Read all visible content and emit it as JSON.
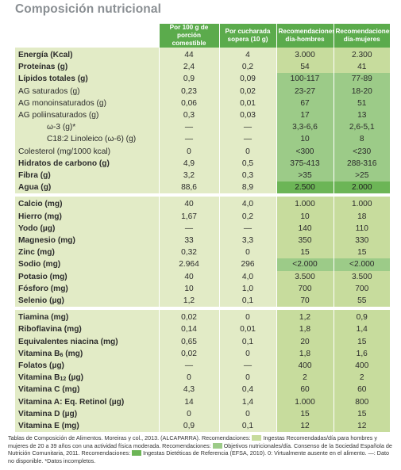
{
  "title": "Composición nutricional",
  "headers": [
    "Por 100 g de porción comestible",
    "Por cucharada sopera (10 g)",
    "Recomendaciones día-hombres",
    "Recomendaciones día-mujeres"
  ],
  "colors": {
    "header": "#5bab4c",
    "light": "#e2ebc6",
    "ingestas": "#c7dc9d",
    "objetivos": "#9ccb88",
    "efsa": "#6cb556"
  },
  "groups": [
    [
      {
        "name": "Energía (Kcal)",
        "bold": true,
        "v": [
          "44",
          "4",
          "3.000",
          "2.300"
        ],
        "c": [
          "",
          "",
          "g1",
          "g1"
        ]
      },
      {
        "name": "Proteínas (g)",
        "bold": true,
        "v": [
          "2,4",
          "0,2",
          "54",
          "41"
        ],
        "c": [
          "",
          "",
          "g1",
          "g1"
        ]
      },
      {
        "name": "Lípidos totales (g)",
        "bold": true,
        "v": [
          "0,9",
          "0,09",
          "100-117",
          "77-89"
        ],
        "c": [
          "",
          "",
          "g2",
          "g2"
        ]
      },
      {
        "name": "AG saturados (g)",
        "bold": false,
        "v": [
          "0,23",
          "0,02",
          "23-27",
          "18-20"
        ],
        "c": [
          "",
          "",
          "g2",
          "g2"
        ]
      },
      {
        "name": "AG monoinsaturados (g)",
        "bold": false,
        "v": [
          "0,06",
          "0,01",
          "67",
          "51"
        ],
        "c": [
          "",
          "",
          "g2",
          "g2"
        ]
      },
      {
        "name": "AG poliinsaturados (g)",
        "bold": false,
        "v": [
          "0,3",
          "0,03",
          "17",
          "13"
        ],
        "c": [
          "",
          "",
          "g2",
          "g2"
        ]
      },
      {
        "name": "ω-3 (g)*",
        "bold": false,
        "indent": true,
        "v": [
          "—",
          "—",
          "3,3-6,6",
          "2,6-5,1"
        ],
        "c": [
          "",
          "",
          "g2",
          "g2"
        ]
      },
      {
        "name": "C18:2 Linoleico (ω-6) (g)",
        "bold": false,
        "indent": true,
        "v": [
          "—",
          "—",
          "10",
          "8"
        ],
        "c": [
          "",
          "",
          "g2",
          "g2"
        ]
      },
      {
        "name": "Colesterol (mg/1000 kcal)",
        "bold": false,
        "v": [
          "0",
          "0",
          "<300",
          "<230"
        ],
        "c": [
          "",
          "",
          "g2",
          "g2"
        ]
      },
      {
        "name": "Hidratos de carbono (g)",
        "bold": true,
        "v": [
          "4,9",
          "0,5",
          "375-413",
          "288-316"
        ],
        "c": [
          "",
          "",
          "g2",
          "g2"
        ]
      },
      {
        "name": "Fibra (g)",
        "bold": true,
        "v": [
          "3,2",
          "0,3",
          ">35",
          ">25"
        ],
        "c": [
          "",
          "",
          "g2",
          "g2"
        ]
      },
      {
        "name": "Agua (g)",
        "bold": true,
        "v": [
          "88,6",
          "8,9",
          "2.500",
          "2.000"
        ],
        "c": [
          "",
          "",
          "g3",
          "g3"
        ]
      }
    ],
    [
      {
        "name": "Calcio (mg)",
        "bold": true,
        "v": [
          "40",
          "4,0",
          "1.000",
          "1.000"
        ],
        "c": [
          "",
          "",
          "g1",
          "g1"
        ]
      },
      {
        "name": "Hierro (mg)",
        "bold": true,
        "v": [
          "1,67",
          "0,2",
          "10",
          "18"
        ],
        "c": [
          "",
          "",
          "g1",
          "g1"
        ]
      },
      {
        "name": "Yodo (µg)",
        "bold": true,
        "v": [
          "—",
          "—",
          "140",
          "110"
        ],
        "c": [
          "",
          "",
          "g1",
          "g1"
        ]
      },
      {
        "name": "Magnesio (mg)",
        "bold": true,
        "v": [
          "33",
          "3,3",
          "350",
          "330"
        ],
        "c": [
          "",
          "",
          "g1",
          "g1"
        ]
      },
      {
        "name": "Zinc (mg)",
        "bold": true,
        "v": [
          "0,32",
          "0",
          "15",
          "15"
        ],
        "c": [
          "",
          "",
          "g1",
          "g1"
        ]
      },
      {
        "name": "Sodio (mg)",
        "bold": true,
        "v": [
          "2.964",
          "296",
          "<2.000",
          "<2.000"
        ],
        "c": [
          "",
          "",
          "g2",
          "g2"
        ]
      },
      {
        "name": "Potasio (mg)",
        "bold": true,
        "v": [
          "40",
          "4,0",
          "3.500",
          "3.500"
        ],
        "c": [
          "",
          "",
          "g1",
          "g1"
        ]
      },
      {
        "name": "Fósforo (mg)",
        "bold": true,
        "v": [
          "10",
          "1,0",
          "700",
          "700"
        ],
        "c": [
          "",
          "",
          "g1",
          "g1"
        ]
      },
      {
        "name": "Selenio (µg)",
        "bold": true,
        "v": [
          "1,2",
          "0,1",
          "70",
          "55"
        ],
        "c": [
          "",
          "",
          "g1",
          "g1"
        ]
      }
    ],
    [
      {
        "name": "Tiamina (mg)",
        "bold": true,
        "v": [
          "0,02",
          "0",
          "1,2",
          "0,9"
        ],
        "c": [
          "",
          "",
          "g1",
          "g1"
        ]
      },
      {
        "name": "Riboflavina (mg)",
        "bold": true,
        "v": [
          "0,14",
          "0,01",
          "1,8",
          "1,4"
        ],
        "c": [
          "",
          "",
          "g1",
          "g1"
        ]
      },
      {
        "name": "Equivalentes niacina (mg)",
        "bold": true,
        "v": [
          "0,65",
          "0,1",
          "20",
          "15"
        ],
        "c": [
          "",
          "",
          "g1",
          "g1"
        ]
      },
      {
        "name": "Vitamina B",
        "sub": "6",
        "tail": " (mg)",
        "bold": true,
        "v": [
          "0,02",
          "0",
          "1,8",
          "1,6"
        ],
        "c": [
          "",
          "",
          "g1",
          "g1"
        ]
      },
      {
        "name": "Folatos (µg)",
        "bold": true,
        "v": [
          "—",
          "—",
          "400",
          "400"
        ],
        "c": [
          "",
          "",
          "g1",
          "g1"
        ]
      },
      {
        "name": "Vitamina B",
        "sub": "12",
        "tail": " (µg)",
        "bold": true,
        "v": [
          "0",
          "0",
          "2",
          "2"
        ],
        "c": [
          "",
          "",
          "g1",
          "g1"
        ]
      },
      {
        "name": "Vitamina C (mg)",
        "bold": true,
        "v": [
          "4,3",
          "0,4",
          "60",
          "60"
        ],
        "c": [
          "",
          "",
          "g1",
          "g1"
        ]
      },
      {
        "name": "Vitamina A: Eq. Retinol (µg)",
        "bold": true,
        "v": [
          "14",
          "1,4",
          "1.000",
          "800"
        ],
        "c": [
          "",
          "",
          "g1",
          "g1"
        ]
      },
      {
        "name": "Vitamina D (µg)",
        "bold": true,
        "v": [
          "0",
          "0",
          "15",
          "15"
        ],
        "c": [
          "",
          "",
          "g1",
          "g1"
        ]
      },
      {
        "name": "Vitamina E (mg)",
        "bold": true,
        "v": [
          "0,9",
          "0,1",
          "12",
          "12"
        ],
        "c": [
          "",
          "",
          "g1",
          "g1"
        ]
      }
    ]
  ],
  "footnote": {
    "part1": "Tablas de Composición de Alimentos. Moreiras y col., 2013. (ALCAPARRA). Recomendaciones:",
    "ingestas": "Ingestas Recomendadas/día para hombres y mujeres de 20 a 39 años con una actividad física moderada. Recomendaciones:",
    "objetivos": "Objetivos nutricionales/día. Consenso de la Sociedad Española de Nutrición Comunitaria, 2011. Recomendaciones:",
    "efsa": "Ingestas Dietéticas de Referencia (EFSA, 2010). 0: Virtualmente ausente en el alimento. —: Dato no disponible. *Datos incompletos."
  }
}
